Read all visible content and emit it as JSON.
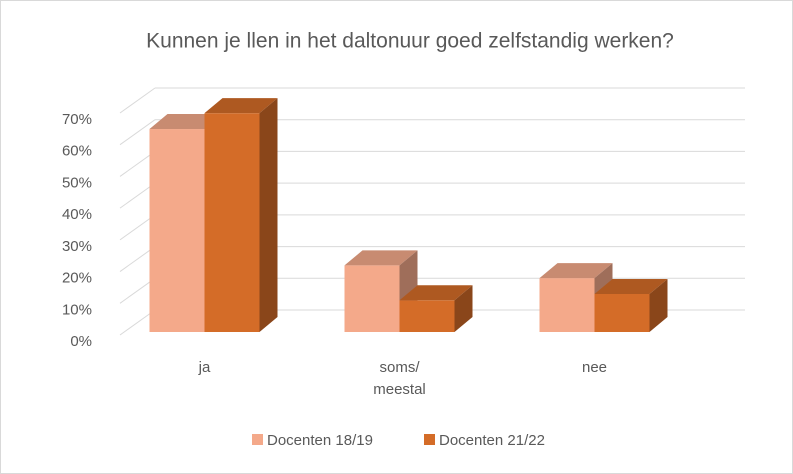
{
  "chart_data": {
    "type": "bar3d",
    "title": "Kunnen je llen in het daltonuur goed zelfstandig werken?",
    "categories": [
      "ja",
      "soms/ meestal",
      "nee"
    ],
    "series": [
      {
        "name": "Docenten 18/19",
        "color": "#f4a98a",
        "values": [
          64,
          21,
          17
        ]
      },
      {
        "name": "Docenten 21/22",
        "color": "#d46c28",
        "values": [
          69,
          10,
          12
        ]
      }
    ],
    "ylim": [
      0,
      70
    ],
    "yticks": [
      {
        "value": 0,
        "label": "0%"
      },
      {
        "value": 10,
        "label": "10%"
      },
      {
        "value": 20,
        "label": "20%"
      },
      {
        "value": 30,
        "label": "30%"
      },
      {
        "value": 40,
        "label": "40%"
      },
      {
        "value": 50,
        "label": "50%"
      },
      {
        "value": 60,
        "label": "60%"
      },
      {
        "value": 70,
        "label": "70%"
      }
    ],
    "grid": true,
    "legend": "bottom"
  }
}
